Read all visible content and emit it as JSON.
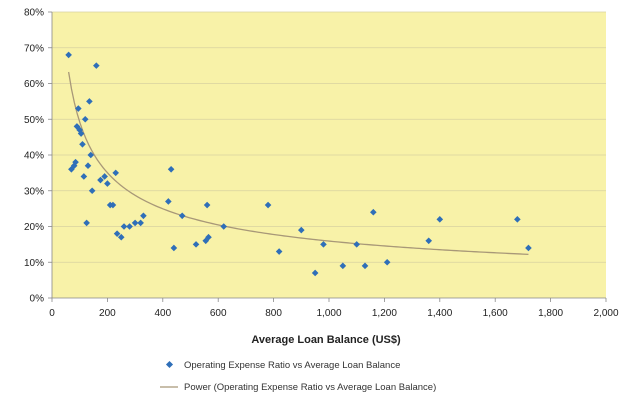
{
  "chart_data": {
    "type": "scatter",
    "title": "",
    "xlabel": "Average Loan Balance (US$)",
    "ylabel": "",
    "xlim": [
      0,
      2000
    ],
    "ylim": [
      0,
      80
    ],
    "x_ticks": [
      "0",
      "200",
      "400",
      "600",
      "800",
      "1,000",
      "1,200",
      "1,400",
      "1,600",
      "1,800",
      "2,000"
    ],
    "y_ticks": [
      "0%",
      "10%",
      "20%",
      "30%",
      "40%",
      "50%",
      "60%",
      "70%",
      "80%"
    ],
    "grid": true,
    "plot_background": "#f8f2a8",
    "marker_color": "#2f6fb8",
    "trend_color": "#a89878",
    "legend_position": "bottom",
    "series": [
      {
        "name": "Operating Expense Ratio vs Average Loan Balance",
        "points": [
          [
            60,
            68
          ],
          [
            70,
            36
          ],
          [
            80,
            37
          ],
          [
            85,
            38
          ],
          [
            90,
            48
          ],
          [
            95,
            53
          ],
          [
            100,
            47
          ],
          [
            105,
            46
          ],
          [
            110,
            43
          ],
          [
            115,
            34
          ],
          [
            120,
            50
          ],
          [
            125,
            21
          ],
          [
            130,
            37
          ],
          [
            135,
            55
          ],
          [
            140,
            40
          ],
          [
            145,
            30
          ],
          [
            160,
            65
          ],
          [
            175,
            33
          ],
          [
            190,
            34
          ],
          [
            200,
            32
          ],
          [
            210,
            26
          ],
          [
            220,
            26
          ],
          [
            230,
            35
          ],
          [
            235,
            18
          ],
          [
            250,
            17
          ],
          [
            260,
            20
          ],
          [
            280,
            20
          ],
          [
            300,
            21
          ],
          [
            320,
            21
          ],
          [
            330,
            23
          ],
          [
            420,
            27
          ],
          [
            430,
            36
          ],
          [
            440,
            14
          ],
          [
            470,
            23
          ],
          [
            520,
            15
          ],
          [
            555,
            16
          ],
          [
            560,
            26
          ],
          [
            565,
            17
          ],
          [
            620,
            20
          ],
          [
            780,
            26
          ],
          [
            820,
            13
          ],
          [
            900,
            19
          ],
          [
            950,
            7
          ],
          [
            980,
            15
          ],
          [
            1050,
            9
          ],
          [
            1100,
            15
          ],
          [
            1130,
            9
          ],
          [
            1160,
            24
          ],
          [
            1210,
            10
          ],
          [
            1360,
            16
          ],
          [
            1400,
            22
          ],
          [
            1680,
            22
          ],
          [
            1720,
            14
          ]
        ]
      },
      {
        "name": "Power (Operating Expense Ratio vs Average Loan Balance)",
        "trend": "power",
        "coefficient": 4.7,
        "exponent": -0.49,
        "x_range": [
          60,
          1720
        ]
      }
    ]
  }
}
